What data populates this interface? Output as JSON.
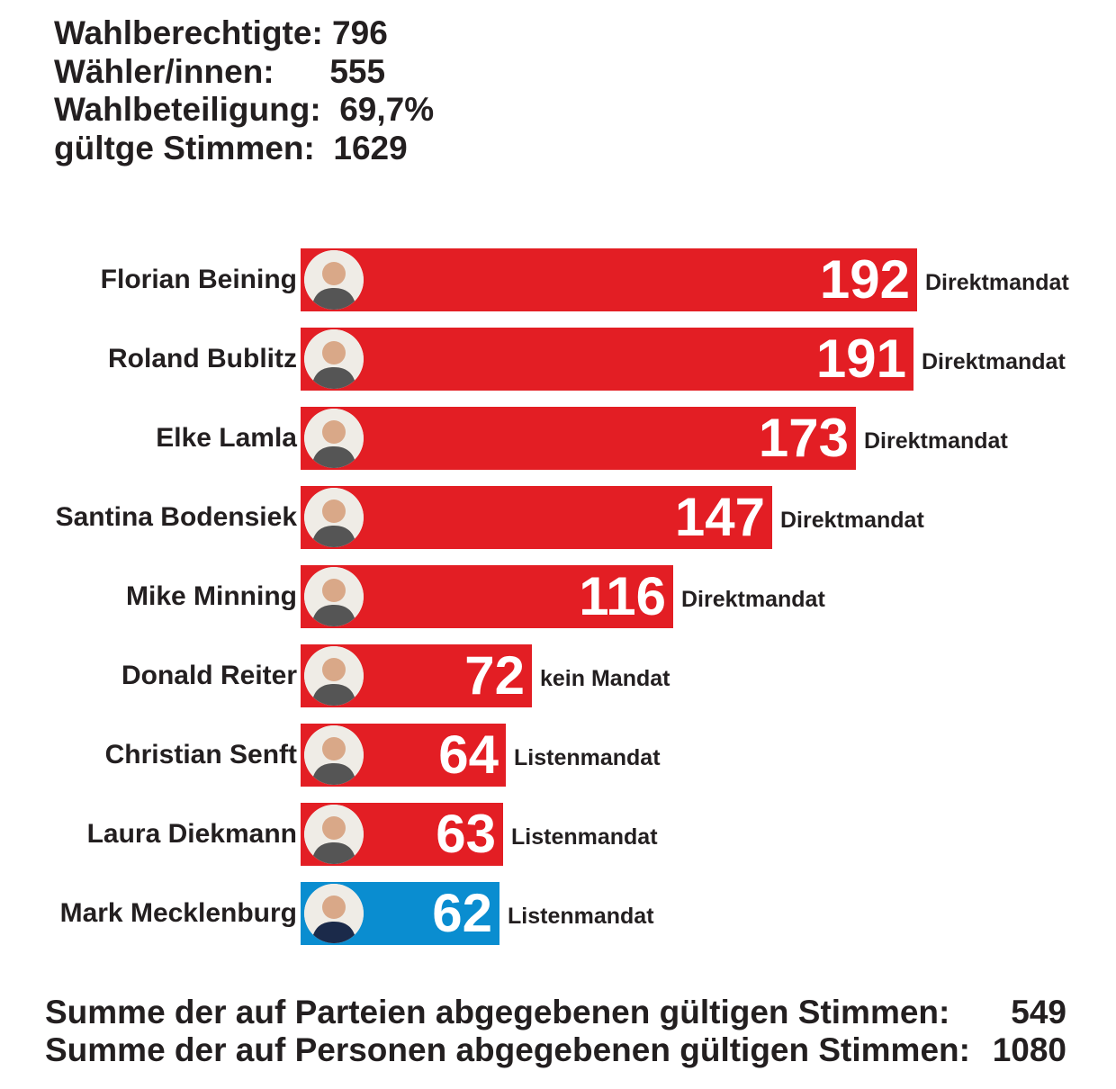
{
  "stats": [
    {
      "label": "Wahlberechtigte:",
      "value": "796"
    },
    {
      "label": "Wähler/innen:",
      "value": "555"
    },
    {
      "label": "Wahlbeteiligung:",
      "value": "69,7%"
    },
    {
      "label": "gültge Stimmen:",
      "value": "1629"
    }
  ],
  "chart_data": {
    "type": "bar",
    "orientation": "horizontal",
    "categories": [
      "Florian Beining",
      "Roland Bublitz",
      "Elke Lamla",
      "Santina Bodensiek",
      "Mike Minning",
      "Donald Reiter",
      "Christian Senft",
      "Laura Diekmann",
      "Mark Mecklenburg"
    ],
    "values": [
      192,
      191,
      173,
      147,
      116,
      72,
      64,
      63,
      62
    ],
    "annotations": [
      "Direktmandat",
      "Direktmandat",
      "Direktmandat",
      "Direktmandat",
      "Direktmandat",
      "kein Mandat",
      "Listenmandat",
      "Listenmandat",
      "Listenmandat"
    ],
    "colors": [
      "#e31e24",
      "#e31e24",
      "#e31e24",
      "#e31e24",
      "#e31e24",
      "#e31e24",
      "#e31e24",
      "#e31e24",
      "#0a8dd0"
    ],
    "avatar_icons": [
      "person-photo-icon",
      "person-photo-icon",
      "person-photo-icon",
      "person-photo-icon",
      "person-photo-icon",
      "person-photo-icon",
      "person-photo-icon",
      "person-photo-icon",
      "person-photo-icon"
    ],
    "xlim": [
      0,
      192
    ],
    "grid": false,
    "legend": "none"
  },
  "footer": [
    {
      "label": "Summe der auf Parteien abgegebenen gültigen Stimmen:",
      "value": "549"
    },
    {
      "label": "Summe der auf Personen abgegebenen gültigen Stimmen:",
      "value": "1080"
    }
  ]
}
